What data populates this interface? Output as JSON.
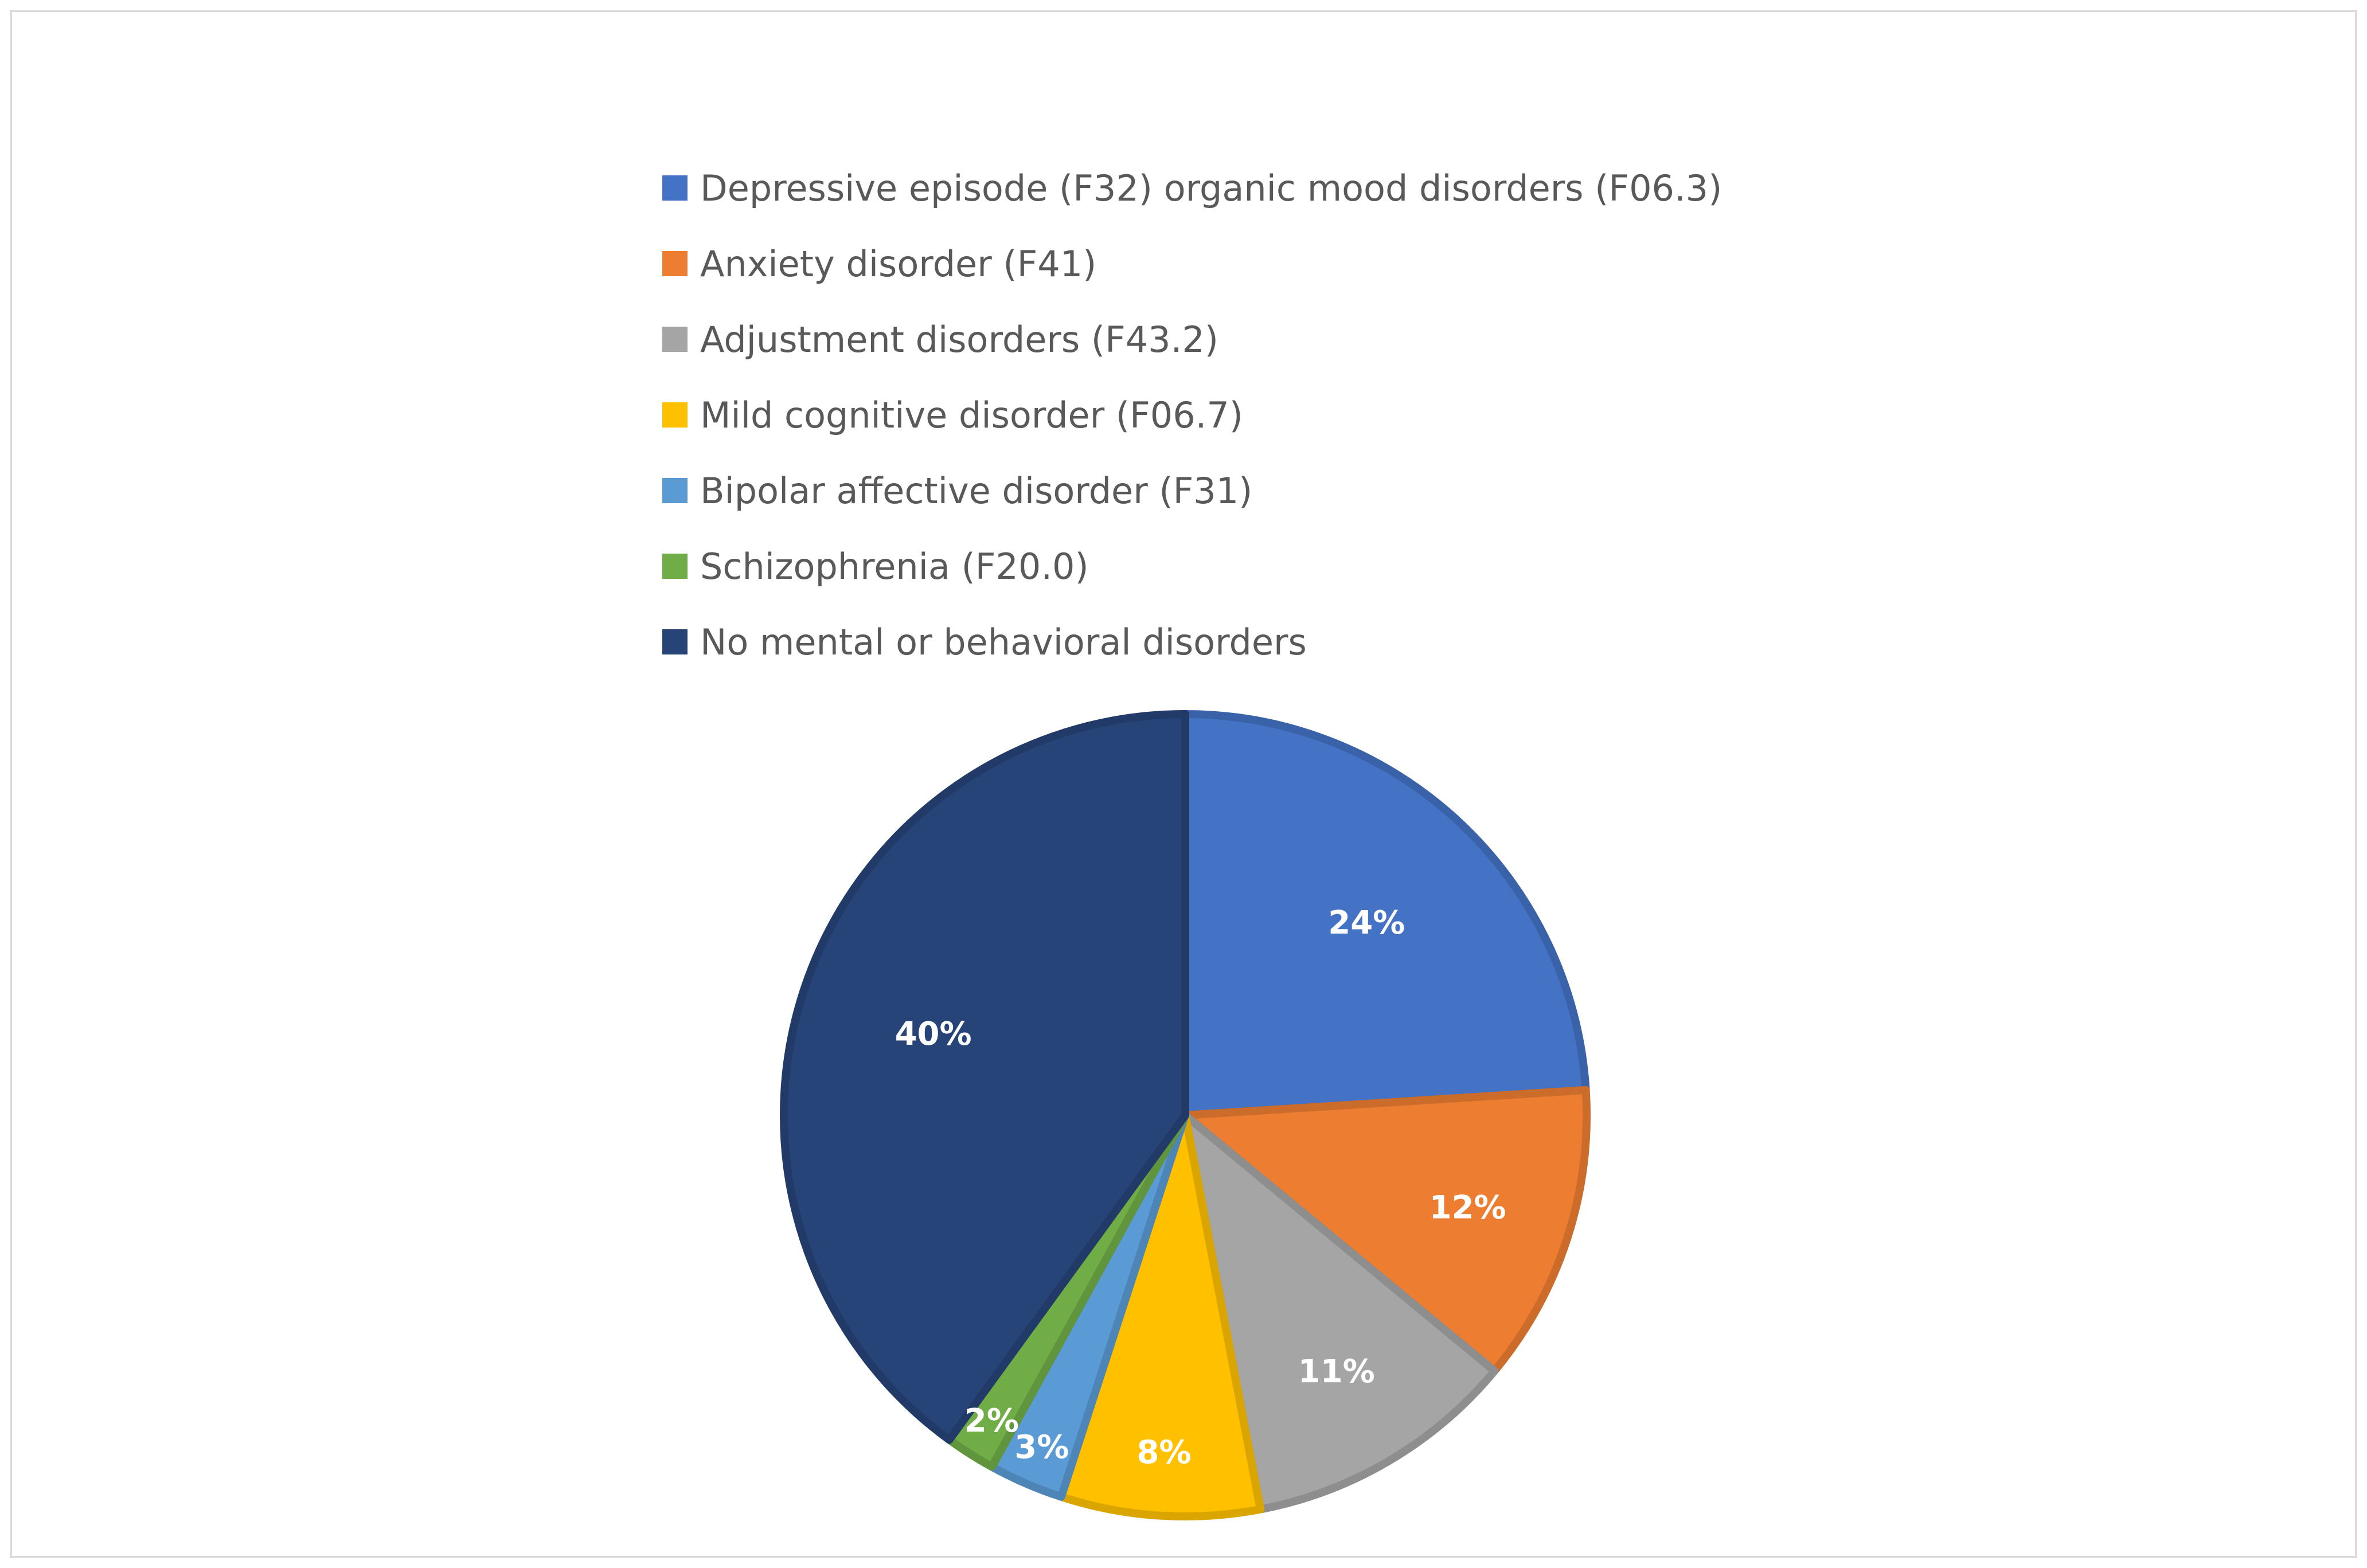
{
  "chart_data": {
    "type": "pie",
    "title": "",
    "categories": [
      "Depressive episode (F32) organic mood disorders (F06.3)",
      "Anxiety disorder (F41)",
      "Adjustment disorders (F43.2)",
      "Mild cognitive disorder (F06.7)",
      "Bipolar affective disorder (F31)",
      "Schizophrenia (F20.0)",
      "No mental or behavioral disorders"
    ],
    "values": [
      24,
      12,
      11,
      8,
      3,
      2,
      40
    ],
    "value_labels": [
      "24%",
      "12%",
      "11%",
      "8%",
      "3%",
      "2%",
      "40%"
    ],
    "colors": [
      "#4472C4",
      "#ED7D31",
      "#A5A5A5",
      "#FFC000",
      "#5B9BD5",
      "#70AD47",
      "#264478"
    ],
    "legend_position": "top",
    "start_angle": "12 o'clock",
    "direction": "clockwise"
  }
}
